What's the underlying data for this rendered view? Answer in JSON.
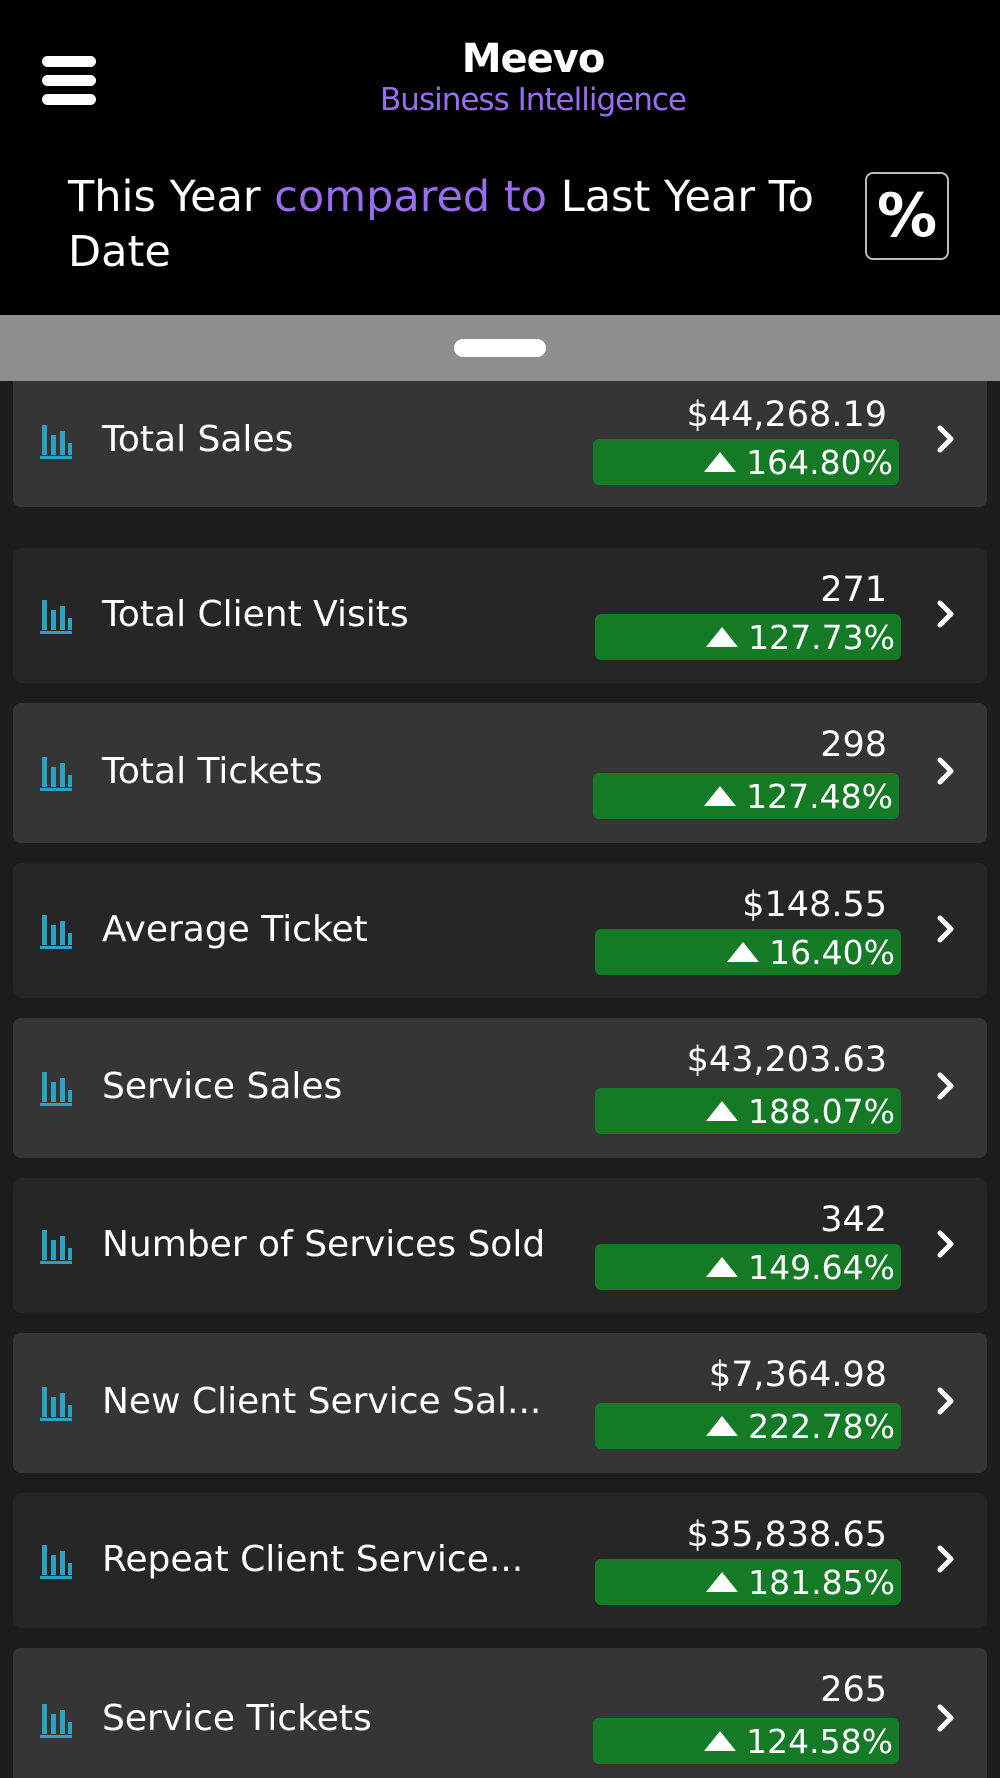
{
  "header": {
    "logo_name": "Meevo",
    "logo_sub": "Business Intelligence",
    "title_part1": "This Year ",
    "title_accent": "compared to",
    "title_part2": " Last Year To Date",
    "percent_toggle": "%"
  },
  "colors": {
    "accent": "#9a6cf0",
    "badge_green": "#157a25",
    "icon_blue": "#2aa2c4"
  },
  "metrics": [
    {
      "label": "Total Sales",
      "value": "$44,268.19",
      "change": "164.80%"
    },
    {
      "label": "Total Client Visits",
      "value": "271",
      "change": "127.73%"
    },
    {
      "label": "Total Tickets",
      "value": "298",
      "change": "127.48%"
    },
    {
      "label": "Average Ticket",
      "value": "$148.55",
      "change": "16.40%"
    },
    {
      "label": "Service Sales",
      "value": "$43,203.63",
      "change": "188.07%"
    },
    {
      "label": "Number of Services Sold",
      "value": "342",
      "change": "149.64%"
    },
    {
      "label": "New Client Service Sal...",
      "value": "$7,364.98",
      "change": "222.78%"
    },
    {
      "label": "Repeat Client Service...",
      "value": "$35,838.65",
      "change": "181.85%"
    },
    {
      "label": "Service Tickets",
      "value": "265",
      "change": "124.58%"
    }
  ]
}
